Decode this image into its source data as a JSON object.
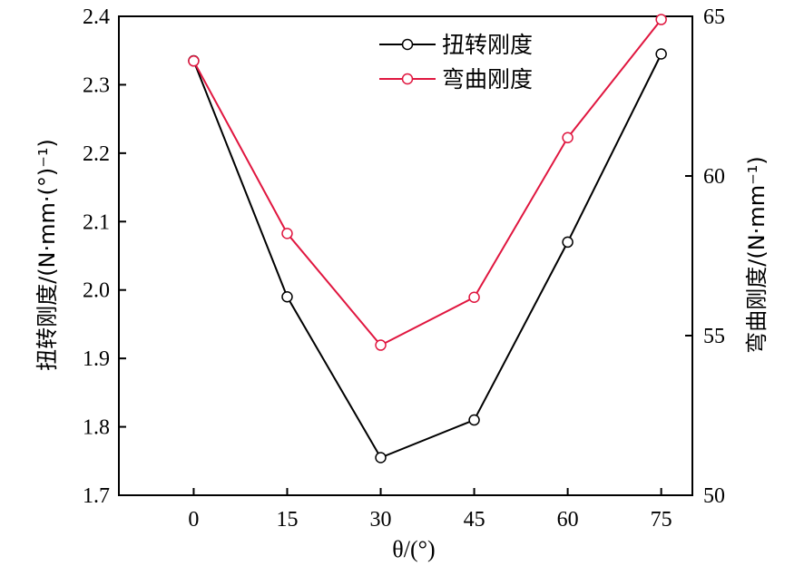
{
  "chart_data": {
    "type": "line",
    "x": [
      0,
      15,
      30,
      45,
      60,
      75
    ],
    "x_tick_labels": [
      "0",
      "15",
      "30",
      "45",
      "60",
      "75"
    ],
    "xlabel": "θ/(°)",
    "xlim": [
      -12,
      80
    ],
    "y_left": {
      "label": "扭转刚度/(N·mm·(°)⁻¹)",
      "lim": [
        1.7,
        2.4
      ],
      "ticks": [
        1.7,
        1.8,
        1.9,
        2.0,
        2.1,
        2.2,
        2.3,
        2.4
      ],
      "tick_labels": [
        "1.7",
        "1.8",
        "1.9",
        "2.0",
        "2.1",
        "2.2",
        "2.3",
        "2.4"
      ]
    },
    "y_right": {
      "label": "弯曲刚度/(N·mm⁻¹)",
      "lim": [
        50,
        65
      ],
      "ticks": [
        50,
        55,
        60,
        65
      ],
      "tick_labels": [
        "50",
        "55",
        "60",
        "65"
      ]
    },
    "series": [
      {
        "name": "扭转刚度",
        "axis": "left",
        "color": "#000000",
        "values": [
          2.335,
          1.99,
          1.755,
          1.81,
          2.07,
          2.345
        ]
      },
      {
        "name": "弯曲刚度",
        "axis": "right",
        "color": "#e0163f",
        "values": [
          63.6,
          58.2,
          54.7,
          56.2,
          61.2,
          64.9
        ]
      }
    ],
    "legend": {
      "position": "top-center"
    },
    "grid": false
  }
}
